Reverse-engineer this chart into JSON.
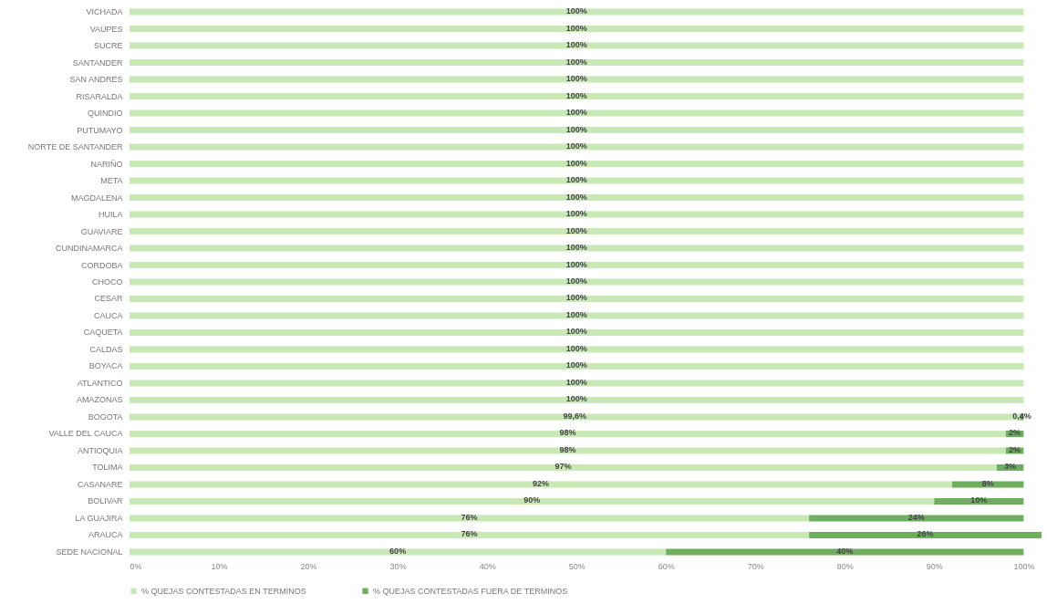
{
  "chart_data": {
    "type": "bar",
    "orientation": "horizontal",
    "stacked": true,
    "categories": [
      "VICHADA",
      "VAUPES",
      "SUCRE",
      "SANTANDER",
      "SAN ANDRES",
      "RISARALDA",
      "QUINDIO",
      "PUTUMAYO",
      "NORTE DE SANTANDER",
      "NARIÑO",
      "META",
      "MAGDALENA",
      "HUILA",
      "GUAVIARE",
      "CUNDINAMARCA",
      "CORDOBA",
      "CHOCO",
      "CESAR",
      "CAUCA",
      "CAQUETA",
      "CALDAS",
      "BOYACA",
      "ATLANTICO",
      "AMAZONAS",
      "BOGOTA",
      "VALLE DEL CAUCA",
      "ANTIOQUIA",
      "TOLIMA",
      "CASANARE",
      "BOLIVAR",
      "LA GUAJIRA",
      "ARAUCA",
      "SEDE NACIONAL"
    ],
    "series": [
      {
        "name": "% QUEJAS CONTESTADAS EN TERMINOS",
        "color": "#c8e8b6",
        "values": [
          100,
          100,
          100,
          100,
          100,
          100,
          100,
          100,
          100,
          100,
          100,
          100,
          100,
          100,
          100,
          100,
          100,
          100,
          100,
          100,
          100,
          100,
          100,
          100,
          99.6,
          98,
          98,
          97,
          92,
          90,
          76,
          76,
          60
        ],
        "value_labels": [
          "100%",
          "100%",
          "100%",
          "100%",
          "100%",
          "100%",
          "100%",
          "100%",
          "100%",
          "100%",
          "100%",
          "100%",
          "100%",
          "100%",
          "100%",
          "100%",
          "100%",
          "100%",
          "100%",
          "100%",
          "100%",
          "100%",
          "100%",
          "100%",
          "99,6%",
          "98%",
          "98%",
          "97%",
          "92%",
          "90%",
          "76%",
          "76%",
          "60%"
        ]
      },
      {
        "name": "% QUEJAS CONTESTADAS FUERA DE TERMINOS",
        "color": "#6fae5f",
        "values": [
          0,
          0,
          0,
          0,
          0,
          0,
          0,
          0,
          0,
          0,
          0,
          0,
          0,
          0,
          0,
          0,
          0,
          0,
          0,
          0,
          0,
          0,
          0,
          0,
          0.4,
          2,
          2,
          3,
          8,
          10,
          24,
          26,
          40
        ],
        "value_labels": [
          null,
          null,
          null,
          null,
          null,
          null,
          null,
          null,
          null,
          null,
          null,
          null,
          null,
          null,
          null,
          null,
          null,
          null,
          null,
          null,
          null,
          null,
          null,
          null,
          "0,4%",
          "2%",
          "2%",
          "3%",
          "8%",
          "10%",
          "24%",
          "26%",
          "40%"
        ]
      }
    ],
    "xlim": [
      0,
      102
    ],
    "xticks": [
      {
        "value": 0,
        "label": "0%"
      },
      {
        "value": 10,
        "label": "10%"
      },
      {
        "value": 20,
        "label": "20%"
      },
      {
        "value": 30,
        "label": "30%"
      },
      {
        "value": 40,
        "label": "40%"
      },
      {
        "value": 50,
        "label": "50%"
      },
      {
        "value": 60,
        "label": "60%"
      },
      {
        "value": 70,
        "label": "70%"
      },
      {
        "value": 80,
        "label": "80%"
      },
      {
        "value": 90,
        "label": "90%"
      },
      {
        "value": 100,
        "label": "100%"
      }
    ],
    "grid": false,
    "legend": "bottom"
  }
}
